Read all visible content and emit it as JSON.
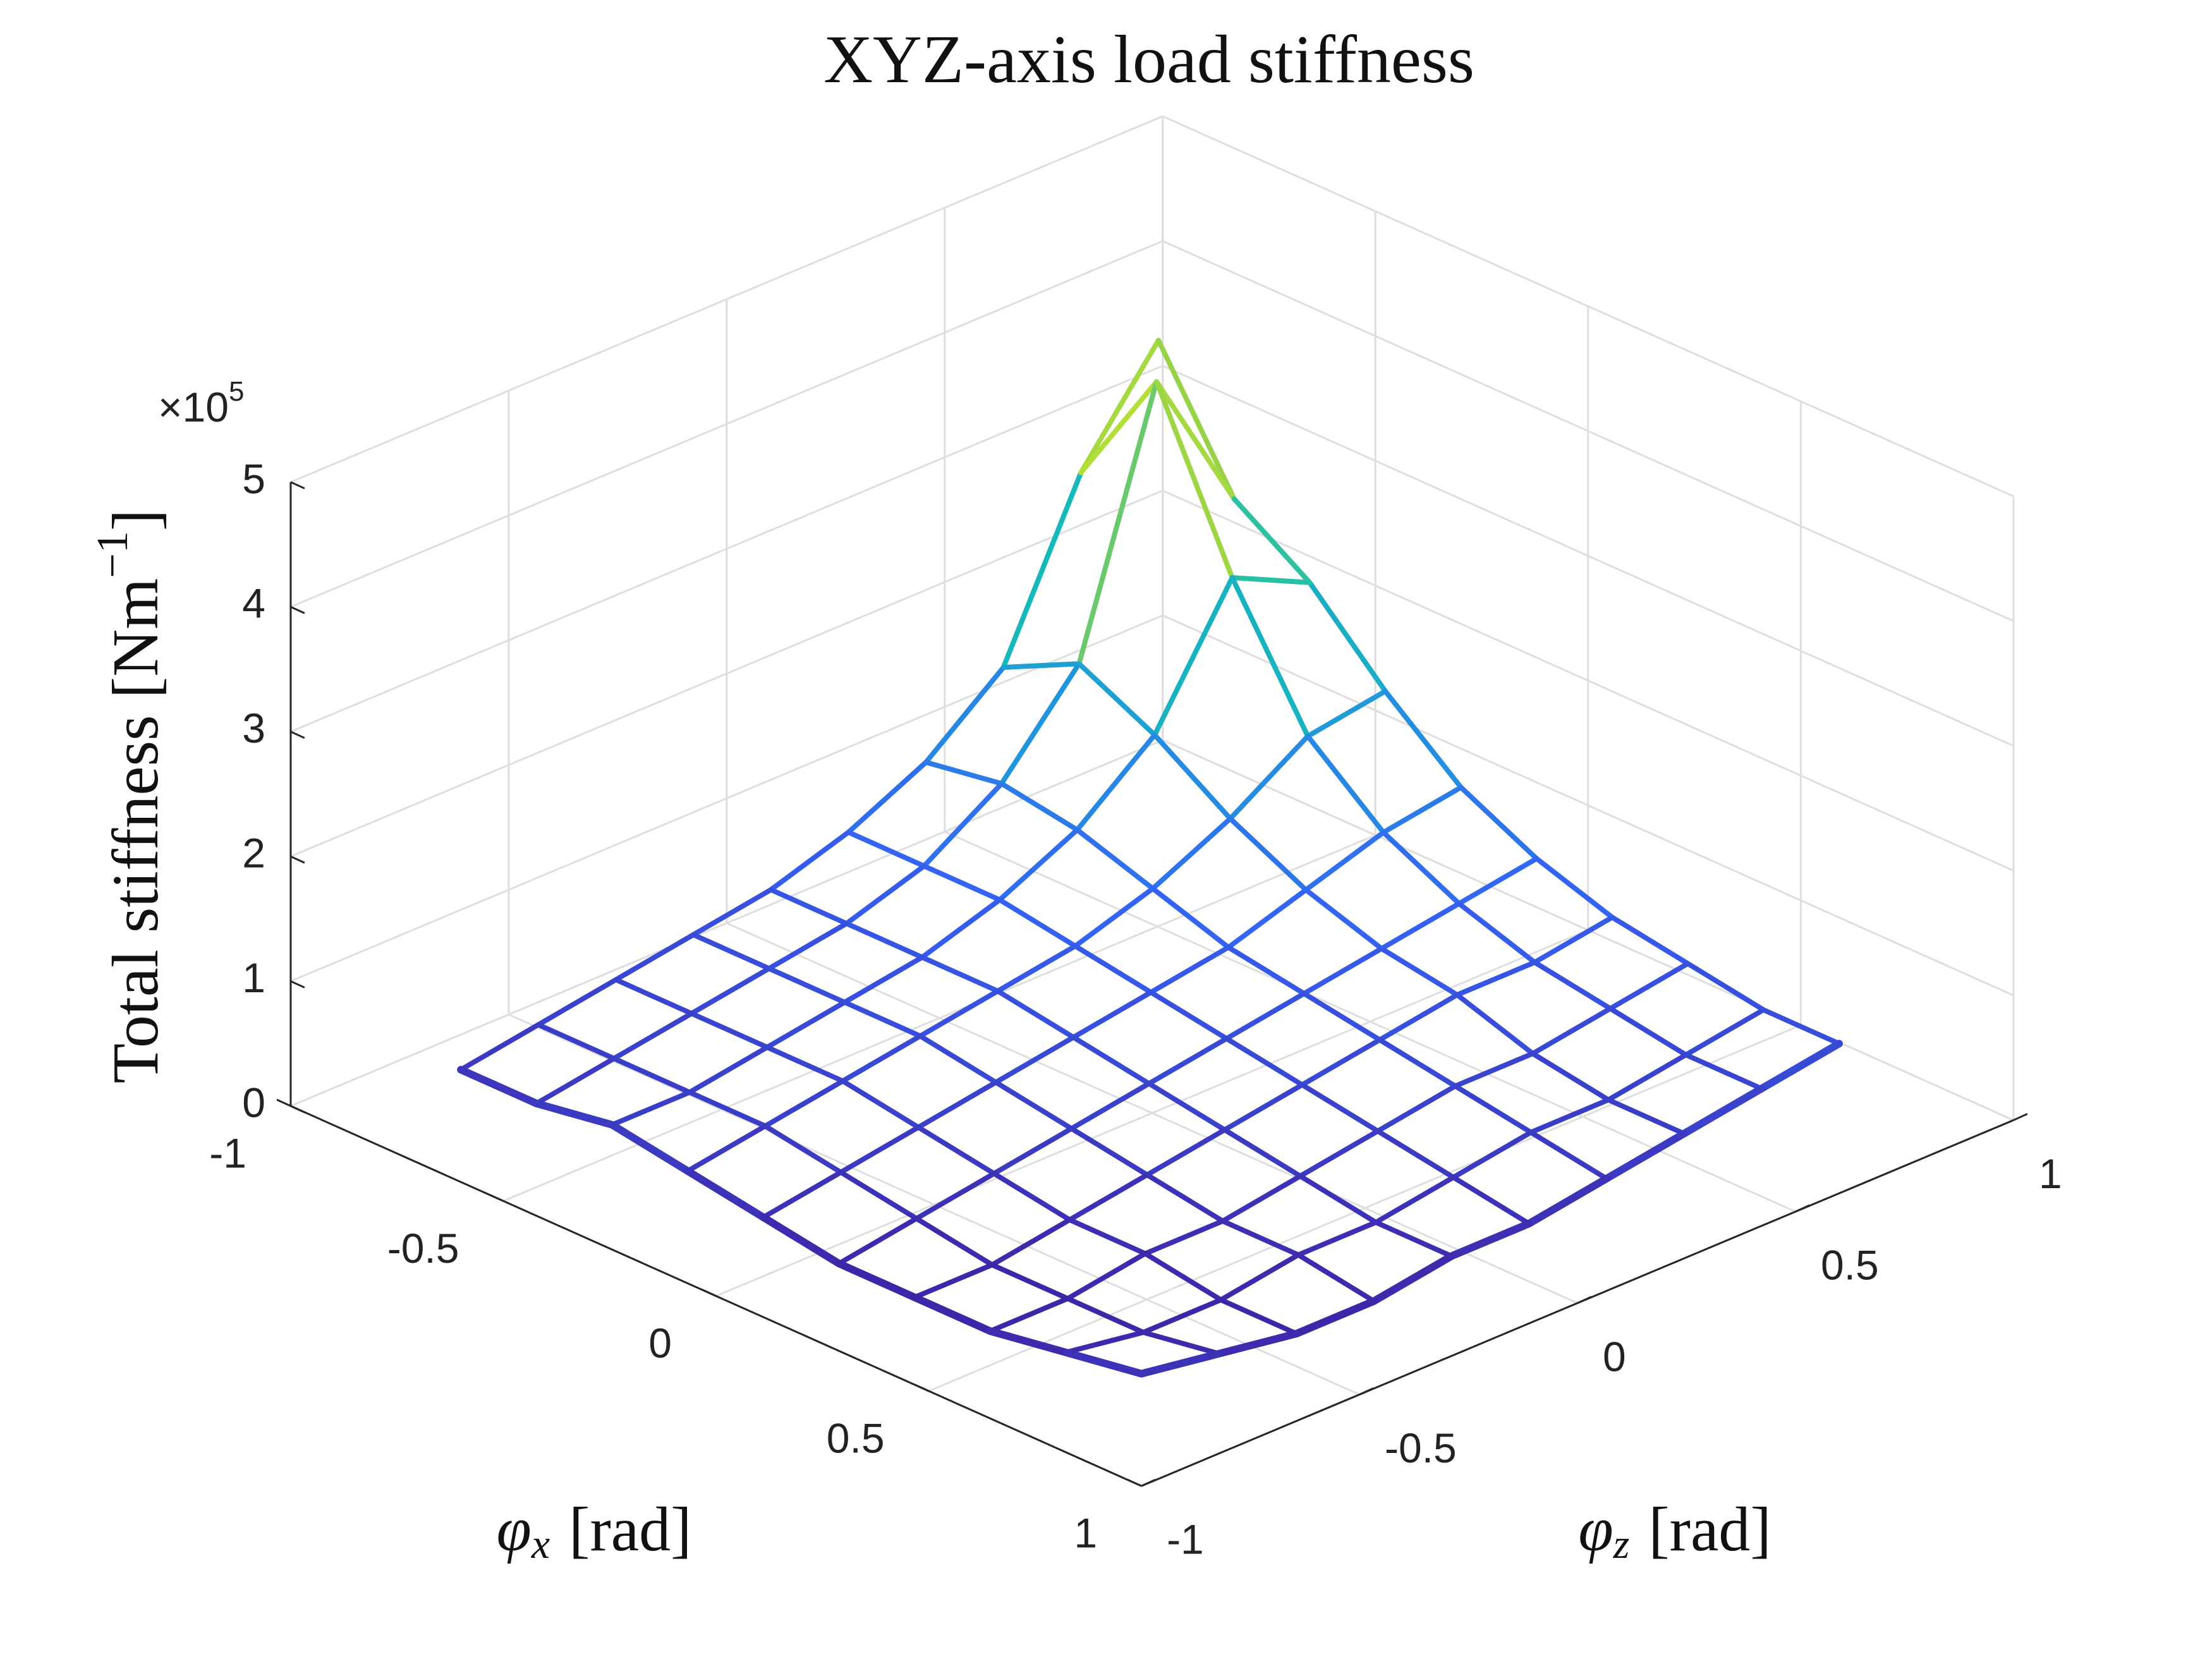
{
  "chart_data": {
    "type": "mesh3d",
    "title": "XYZ-axis load stiffness",
    "xlabel": {
      "symbol": "φ",
      "subscript": "x",
      "unit": "[rad]"
    },
    "ylabel": {
      "symbol": "φ",
      "subscript": "z",
      "unit": "[rad]"
    },
    "zlabel": {
      "text": "Total stiffness [Nm",
      "superscript": "−1",
      "close": "]"
    },
    "zexponent": {
      "base": "×10",
      "power": "5"
    },
    "x": [
      -0.6,
      -0.4222,
      -0.2444,
      -0.0667,
      0.1111,
      0.2889,
      0.4667,
      0.6444,
      0.8222,
      1
    ],
    "y": [
      -1,
      -0.8222,
      -0.6444,
      -0.4667,
      -0.2889,
      -0.1111,
      0.0667,
      0.2444,
      0.4222,
      0.6
    ],
    "z": [
      [
        0.9,
        1.0,
        1.1,
        1.2,
        1.3,
        1.5,
        1.8,
        2.3,
        3.6,
        4.4
      ],
      [
        0.9,
        1.0,
        1.1,
        1.2,
        1.3,
        1.5,
        1.9,
        2.6,
        4.6,
        3.4
      ],
      [
        1.0,
        1.0,
        1.1,
        1.2,
        1.3,
        1.5,
        1.8,
        2.3,
        3.3,
        3.0
      ],
      [
        0.9,
        1.0,
        1.1,
        1.2,
        1.3,
        1.4,
        1.6,
        1.9,
        2.3,
        2.4
      ],
      [
        0.8,
        0.9,
        1.0,
        1.1,
        1.2,
        1.3,
        1.4,
        1.6,
        1.8,
        1.9
      ],
      [
        0.7,
        0.8,
        0.9,
        1.0,
        1.1,
        1.2,
        1.3,
        1.4,
        1.5,
        1.6
      ],
      [
        0.7,
        0.7,
        0.8,
        0.9,
        1.0,
        1.1,
        1.2,
        1.3,
        1.3,
        1.4
      ],
      [
        0.7,
        0.7,
        0.8,
        0.8,
        0.9,
        1.0,
        1.1,
        1.1,
        1.2,
        1.3
      ],
      [
        0.8,
        0.7,
        0.7,
        0.8,
        0.8,
        0.9,
        1.0,
        1.0,
        1.1,
        1.2
      ],
      [
        0.9,
        0.8,
        0.7,
        0.7,
        0.8,
        0.8,
        0.9,
        1.0,
        1.1,
        1.2
      ]
    ],
    "xlim": [
      -1,
      1
    ],
    "ylim": [
      -1,
      1
    ],
    "zlim": [
      0,
      5
    ],
    "xticks": [
      -1,
      -0.5,
      0,
      0.5,
      1
    ],
    "yticks": [
      -1,
      -0.5,
      0,
      0.5,
      1
    ],
    "zticks": [
      0,
      1,
      2,
      3,
      4,
      5
    ],
    "grid": true,
    "colormap": "parula"
  }
}
